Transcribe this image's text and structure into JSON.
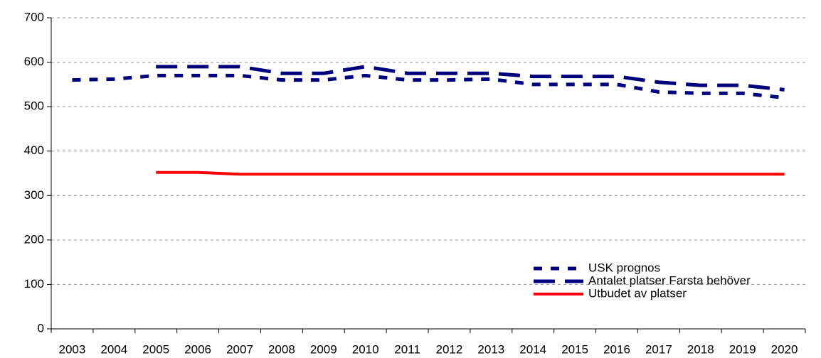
{
  "chart_data": {
    "type": "line",
    "categories": [
      "2003",
      "2004",
      "2005",
      "2006",
      "2007",
      "2008",
      "2009",
      "2010",
      "2011",
      "2012",
      "2013",
      "2014",
      "2015",
      "2016",
      "2017",
      "2018",
      "2019",
      "2020"
    ],
    "series": [
      {
        "name": "USK prognos",
        "color": "#00007f",
        "style": "dotted",
        "values": [
          560,
          562,
          570,
          570,
          570,
          560,
          560,
          570,
          560,
          560,
          562,
          550,
          550,
          550,
          533,
          530,
          530,
          520
        ]
      },
      {
        "name": "Antalet platser Farsta behöver",
        "color": "#00007f",
        "style": "dashed",
        "values": [
          null,
          null,
          590,
          590,
          590,
          575,
          575,
          590,
          575,
          575,
          575,
          568,
          568,
          568,
          555,
          548,
          548,
          538
        ]
      },
      {
        "name": "Utbudet av platser",
        "color": "#ff0000",
        "style": "solid",
        "values": [
          null,
          null,
          352,
          352,
          348,
          348,
          348,
          348,
          348,
          348,
          348,
          348,
          348,
          348,
          348,
          348,
          348,
          348
        ]
      }
    ],
    "ylim": [
      0,
      700
    ],
    "yticks": [
      0,
      100,
      200,
      300,
      400,
      500,
      600,
      700
    ],
    "grid": true,
    "legend": "lower right"
  }
}
